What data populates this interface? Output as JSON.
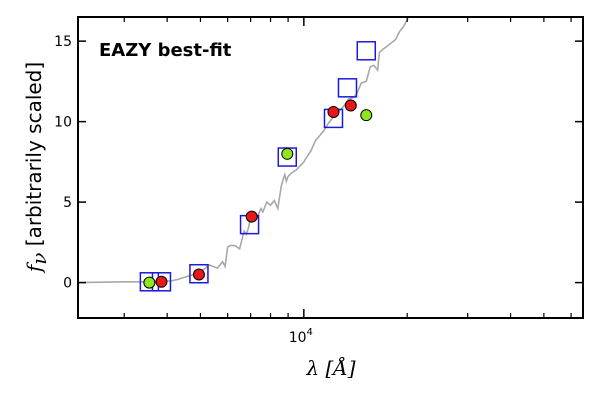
{
  "chart_data": {
    "type": "scatter",
    "title": "",
    "annotation": "EAZY best-fit",
    "annotation_color": "#ff0000",
    "xlabel": "λ [Å]",
    "ylabel_symbol": "f",
    "ylabel_subscript": "ν",
    "ylabel_text": "[arbitrarily scaled]",
    "x_scale": "log",
    "xlim": [
      2200,
      65000
    ],
    "ylim": [
      -2.2,
      16.5
    ],
    "y_ticks": [
      0,
      5,
      10,
      15
    ],
    "y_tick_labels": [
      "0",
      "5",
      "10",
      "15"
    ],
    "x_major_tick_base": "10",
    "x_major_tick_exponent": "4",
    "x_major_tick_value": 10000,
    "x_minor_ticks": [
      3000,
      4000,
      5000,
      6000,
      7000,
      8000,
      9000,
      20000,
      30000,
      40000,
      50000,
      60000
    ],
    "grid": false,
    "colors": {
      "model": "#a8a8a8",
      "square_edge": "#1a1adb",
      "red_point": "#e81818",
      "green_point": "#8fe61a",
      "point_edge": "#000000"
    },
    "series": [
      {
        "marker": "line",
        "x": [
          2200,
          3000,
          3600,
          3900,
          4100,
          4300,
          4600,
          4800,
          5000,
          5300,
          5600,
          5800,
          5900,
          6000,
          6100,
          6300,
          6500,
          6700,
          6800,
          6900,
          7000,
          7100,
          7300,
          7500,
          7600,
          7800,
          8000,
          8200,
          8400,
          8600,
          8700,
          8800,
          8900,
          9000,
          9200,
          9500,
          9800,
          10000,
          10200,
          10500,
          10800,
          11000,
          11400,
          11800,
          12200,
          12600,
          13000,
          13500,
          14000,
          14300,
          14700,
          15200,
          15600,
          16000,
          16400,
          16600,
          17000,
          17500,
          18000,
          18500,
          19000,
          19500,
          20200
        ],
        "y": [
          0.0,
          0.05,
          0.05,
          0.1,
          0.1,
          0.2,
          0.4,
          0.5,
          0.65,
          1.1,
          0.9,
          1.3,
          1.0,
          2.2,
          2.3,
          2.3,
          2.1,
          3.2,
          3.0,
          3.4,
          4.1,
          3.9,
          4.0,
          4.6,
          4.4,
          5.0,
          4.8,
          5.1,
          4.6,
          6.0,
          6.4,
          6.7,
          6.3,
          6.6,
          6.8,
          7.0,
          7.3,
          7.5,
          7.8,
          8.2,
          8.8,
          9.0,
          9.4,
          9.9,
          10.3,
          10.6,
          10.9,
          11.4,
          11.5,
          11.8,
          12.4,
          12.5,
          13.4,
          13.5,
          13.2,
          14.3,
          14.5,
          14.7,
          14.9,
          15.1,
          15.6,
          15.9,
          16.5
        ]
      },
      {
        "marker": "open-square",
        "x": [
          3550,
          3850,
          4950,
          6950,
          8950,
          12200,
          13400,
          15200
        ],
        "y": [
          0.05,
          0.05,
          0.55,
          3.6,
          7.8,
          10.2,
          12.1,
          14.4
        ]
      },
      {
        "marker": "red-circle",
        "x": [
          3850,
          4950,
          7050,
          12200,
          13700
        ],
        "y": [
          0.05,
          0.5,
          4.1,
          10.6,
          11.0
        ]
      },
      {
        "marker": "green-circle",
        "x": [
          3550,
          8950,
          15200
        ],
        "y": [
          0.0,
          8.0,
          10.4
        ]
      }
    ]
  }
}
